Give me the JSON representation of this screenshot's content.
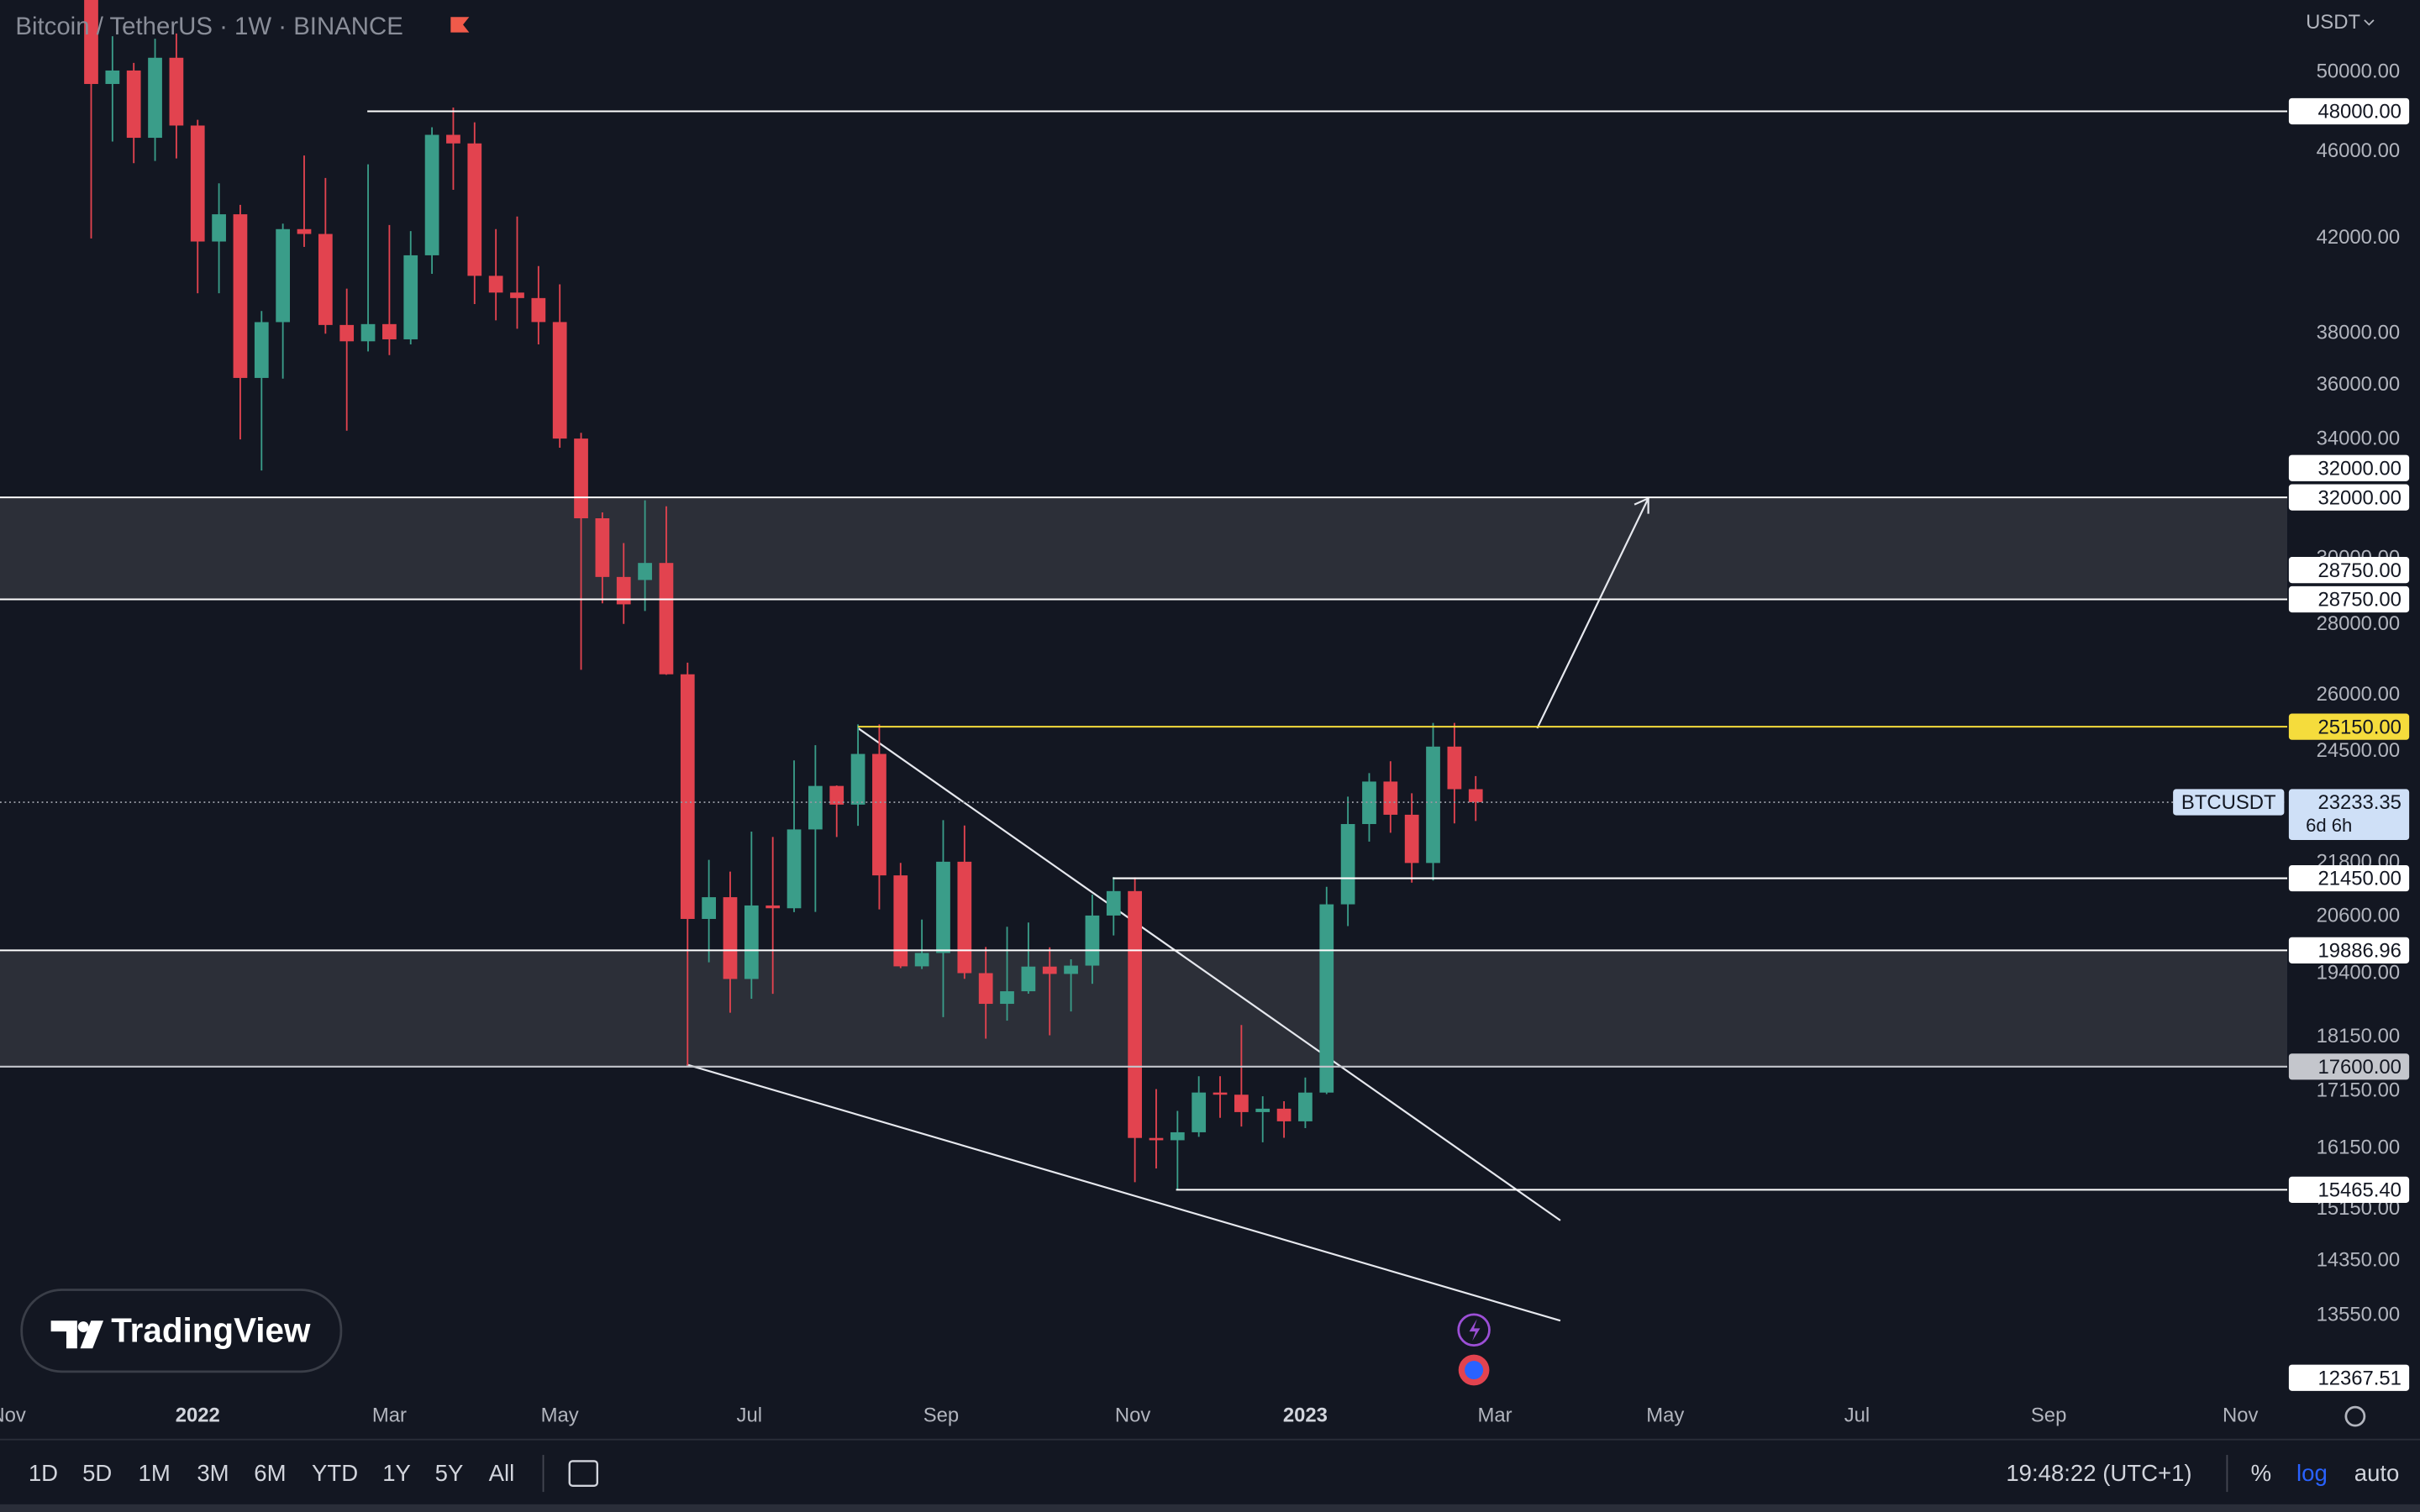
{
  "header": {
    "symbol": "Bitcoin / TetherUS · 1W · BINANCE"
  },
  "logo": "TradingView",
  "chart_data": {
    "type": "candlestick",
    "log_scale": true,
    "up_color": "#3a9d89",
    "down_color": "#e2434f",
    "zone_color": "#2c2f38",
    "currency": "USDT",
    "candles": {
      "x": [
        -5,
        -4,
        -3,
        -2,
        -1,
        0,
        1,
        2,
        3,
        4,
        5,
        6,
        7,
        8,
        9,
        10,
        11,
        12,
        13,
        14,
        15,
        16,
        17,
        18,
        19,
        20,
        21,
        22,
        23,
        24,
        25,
        26,
        27,
        28,
        29,
        30,
        31,
        32,
        33,
        34,
        35,
        36,
        37,
        38,
        39,
        40,
        41,
        42,
        43,
        44,
        45,
        46,
        47,
        48,
        49,
        50,
        51,
        52,
        53,
        54,
        55,
        56,
        57,
        58,
        59,
        60
      ],
      "open": [
        57275,
        49396,
        50100,
        46681,
        50775,
        47286,
        41864,
        43079,
        36276,
        38466,
        42412,
        42197,
        38351,
        37699,
        38386,
        37777,
        41262,
        46827,
        46407,
        40382,
        39678,
        39450,
        38469,
        34038,
        31305,
        29434,
        29340,
        29870,
        26574,
        20553,
        21028,
        19297,
        20846,
        20785,
        22579,
        23634,
        23175,
        24442,
        21515,
        19555,
        19831,
        21826,
        19416,
        18800,
        19050,
        19550,
        19400,
        19570,
        20627,
        21163,
        16330,
        16291,
        16428,
        17128,
        17089,
        16780,
        16840,
        16618,
        17127,
        20871,
        22707,
        23743,
        22930,
        21797,
        24631,
        23554
      ],
      "high": [
        59041,
        51936,
        50500,
        51800,
        52088,
        47570,
        44500,
        43505,
        38919,
        42656,
        45821,
        44751,
        39843,
        45400,
        42594,
        42325,
        47200,
        48189,
        47444,
        42414,
        42976,
        40797,
        40023,
        34243,
        31500,
        30500,
        31900,
        31700,
        26900,
        21868,
        21600,
        22527,
        22400,
        24276,
        24668,
        23647,
        25211,
        25211,
        21800,
        20540,
        22800,
        22673,
        19956,
        20385,
        20475,
        19950,
        19700,
        21085,
        21478,
        21473,
        17190,
        16800,
        17424,
        17424,
        18387,
        17061,
        16972,
        17400,
        21258,
        23371,
        23955,
        24255,
        23453,
        25250,
        25250,
        23880
      ],
      "low": [
        42000,
        46500,
        45456,
        45558,
        45678,
        39650,
        39650,
        34008,
        32917,
        36250,
        41628,
        38000,
        34322,
        37300,
        37155,
        37578,
        40468,
        44200,
        39200,
        38536,
        38200,
        37578,
        33713,
        26700,
        28630,
        28019,
        28400,
        26560,
        17622,
        19637,
        18626,
        18900,
        18999,
        20700,
        20706,
        22400,
        22665,
        20761,
        19520,
        19500,
        18540,
        19300,
        18125,
        18471,
        19000,
        18190,
        18650,
        19200,
        20200,
        15588,
        15815,
        15476,
        16350,
        16679,
        16527,
        16256,
        16333,
        16500,
        17100,
        20400,
        22292,
        22500,
        21351,
        21400,
        22722,
        22780
      ],
      "close": [
        49396,
        50100,
        46681,
        50775,
        47286,
        41864,
        43079,
        36276,
        38466,
        42412,
        42197,
        38351,
        37699,
        38386,
        37777,
        41262,
        46827,
        46407,
        40382,
        39678,
        39450,
        38469,
        34038,
        31305,
        29434,
        28600,
        29870,
        26574,
        20553,
        21028,
        19297,
        20846,
        20785,
        22579,
        23634,
        23175,
        24442,
        21515,
        19555,
        19831,
        21826,
        19416,
        18800,
        19050,
        19550,
        19400,
        19570,
        20627,
        21163,
        16330,
        16291,
        16428,
        17128,
        17089,
        16780,
        16840,
        16618,
        17127,
        20871,
        22707,
        23743,
        22930,
        21797,
        24631,
        23554,
        23233.35
      ]
    },
    "ylim": [
      12450,
      53950
    ],
    "yticks": [
      {
        "value": 50000,
        "label": "50000.00"
      },
      {
        "value": 46000,
        "label": "46000.00"
      },
      {
        "value": 42000,
        "label": "42000.00"
      },
      {
        "value": 38000,
        "label": "38000.00"
      },
      {
        "value": 36000,
        "label": "36000.00"
      },
      {
        "value": 34000,
        "label": "34000.00"
      },
      {
        "value": 30000,
        "label": "30000.00"
      },
      {
        "value": 28000,
        "label": "28000.00"
      },
      {
        "value": 26000,
        "label": "26000.00"
      },
      {
        "value": 24500,
        "label": "24500.00"
      },
      {
        "value": 21800,
        "label": "21800.00"
      },
      {
        "value": 20600,
        "label": "20600.00"
      },
      {
        "value": 19400,
        "label": "19400.00"
      },
      {
        "value": 18150,
        "label": "18150.00"
      },
      {
        "value": 17150,
        "label": "17150.00"
      },
      {
        "value": 16150,
        "label": "16150.00"
      },
      {
        "value": 15150,
        "label": "15150.00"
      },
      {
        "value": 14350,
        "label": "14350.00"
      },
      {
        "value": 13550,
        "label": "13550.00"
      }
    ],
    "xlim": [
      -9.28,
      98.1
    ],
    "xticks": [
      {
        "value": -8.9,
        "label": "Nov"
      },
      {
        "value": 0,
        "label": "2022"
      },
      {
        "value": 9,
        "label": "Mar"
      },
      {
        "value": 17,
        "label": "May"
      },
      {
        "value": 25.9,
        "label": "Jul"
      },
      {
        "value": 34.9,
        "label": "Sep"
      },
      {
        "value": 43.9,
        "label": "Nov"
      },
      {
        "value": 52,
        "label": "2023"
      },
      {
        "value": 60.9,
        "label": "Mar"
      },
      {
        "value": 68.9,
        "label": "May"
      },
      {
        "value": 77.9,
        "label": "Jul"
      },
      {
        "value": 86.9,
        "label": "Sep"
      },
      {
        "value": 95.9,
        "label": "Nov"
      }
    ],
    "levels": [
      {
        "value": 48000,
        "label": "48000.00",
        "color": "#ffffff"
      },
      {
        "value": 32000,
        "label": "32000.00",
        "color": "#ffffff"
      },
      {
        "value": 32000,
        "label": "32000.00",
        "color": "#ffffff"
      },
      {
        "value": 28750,
        "label": "28750.00",
        "color": "#ffffff"
      },
      {
        "value": 28750,
        "label": "28750.00",
        "color": "#ffffff"
      },
      {
        "value": 25150,
        "label": "25150.00",
        "color": "#f5dc3c"
      },
      {
        "value": 21450,
        "label": "21450.00",
        "color": "#ffffff"
      },
      {
        "value": 19886.96,
        "label": "19886.96",
        "color": "#ffffff"
      },
      {
        "value": 17600,
        "label": "17600.00",
        "color": "#c4c6cc"
      },
      {
        "value": 15465.4,
        "label": "15465.40",
        "color": "#ffffff"
      },
      {
        "value": 12367.51,
        "label": "12367.51",
        "color": "#ffffff"
      }
    ],
    "zones": [
      [
        28750,
        32000
      ],
      [
        17600,
        19886.96
      ]
    ],
    "last_price": {
      "symbol": "BTCUSDT",
      "value": 23233.35,
      "label": "23233.35",
      "countdown": "6d 6h"
    }
  },
  "toolbar": {
    "ranges": [
      "1D",
      "5D",
      "1M",
      "3M",
      "6M",
      "YTD",
      "1Y",
      "5Y",
      "All"
    ],
    "clock": "19:48:22 (UTC+1)",
    "percent": "%",
    "log": "log",
    "auto": "auto"
  }
}
